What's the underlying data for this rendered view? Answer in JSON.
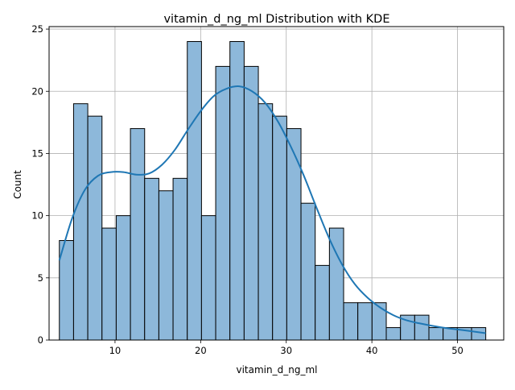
{
  "chart_data": {
    "type": "bar",
    "title": "vitamin_d_ng_ml Distribution with KDE",
    "xlabel": "vitamin_d_ng_ml",
    "ylabel": "Count",
    "xlim": [
      2.3,
      55.4
    ],
    "ylim": [
      0,
      25.2
    ],
    "xticks": [
      10,
      20,
      30,
      40,
      50
    ],
    "yticks": [
      0,
      5,
      10,
      15,
      20,
      25
    ],
    "grid": true,
    "bin_width": 1.66,
    "bin_edges": [
      3.5,
      5.16,
      6.82,
      8.48,
      10.14,
      11.8,
      13.46,
      15.12,
      16.78,
      18.44,
      20.1,
      21.76,
      23.42,
      25.08,
      26.74,
      28.4,
      30.06,
      31.72,
      33.38,
      35.04,
      36.7,
      38.36,
      40.02,
      41.68,
      43.34,
      45.0,
      46.66,
      48.32,
      49.98,
      51.64,
      53.3
    ],
    "values": [
      8,
      19,
      18,
      9,
      10,
      17,
      13,
      12,
      13,
      24,
      10,
      22,
      24,
      22,
      19,
      18,
      17,
      11,
      6,
      9,
      3,
      3,
      3,
      1,
      2,
      2,
      1,
      1,
      1,
      1
    ],
    "bar_color": "#8db8da",
    "bar_edge_color": "#000000",
    "kde": {
      "color": "#1f77b4",
      "x": [
        3.5,
        5,
        6.5,
        8,
        9.5,
        11,
        12.5,
        14,
        15.5,
        17,
        18.5,
        20,
        21.5,
        23,
        24.5,
        26,
        27.5,
        29,
        30.5,
        32,
        33.5,
        35,
        36.5,
        38,
        39.5,
        41,
        42.5,
        44,
        45.5,
        47,
        48.5,
        50,
        51.5,
        53.3
      ],
      "y": [
        6.4,
        9.8,
        12.1,
        13.2,
        13.5,
        13.5,
        13.3,
        13.4,
        14.1,
        15.3,
        16.9,
        18.4,
        19.6,
        20.2,
        20.4,
        20.0,
        19.1,
        17.6,
        15.6,
        13.3,
        10.7,
        8.2,
        6.1,
        4.5,
        3.4,
        2.6,
        2.0,
        1.6,
        1.35,
        1.15,
        0.98,
        0.85,
        0.72,
        0.55
      ]
    }
  }
}
